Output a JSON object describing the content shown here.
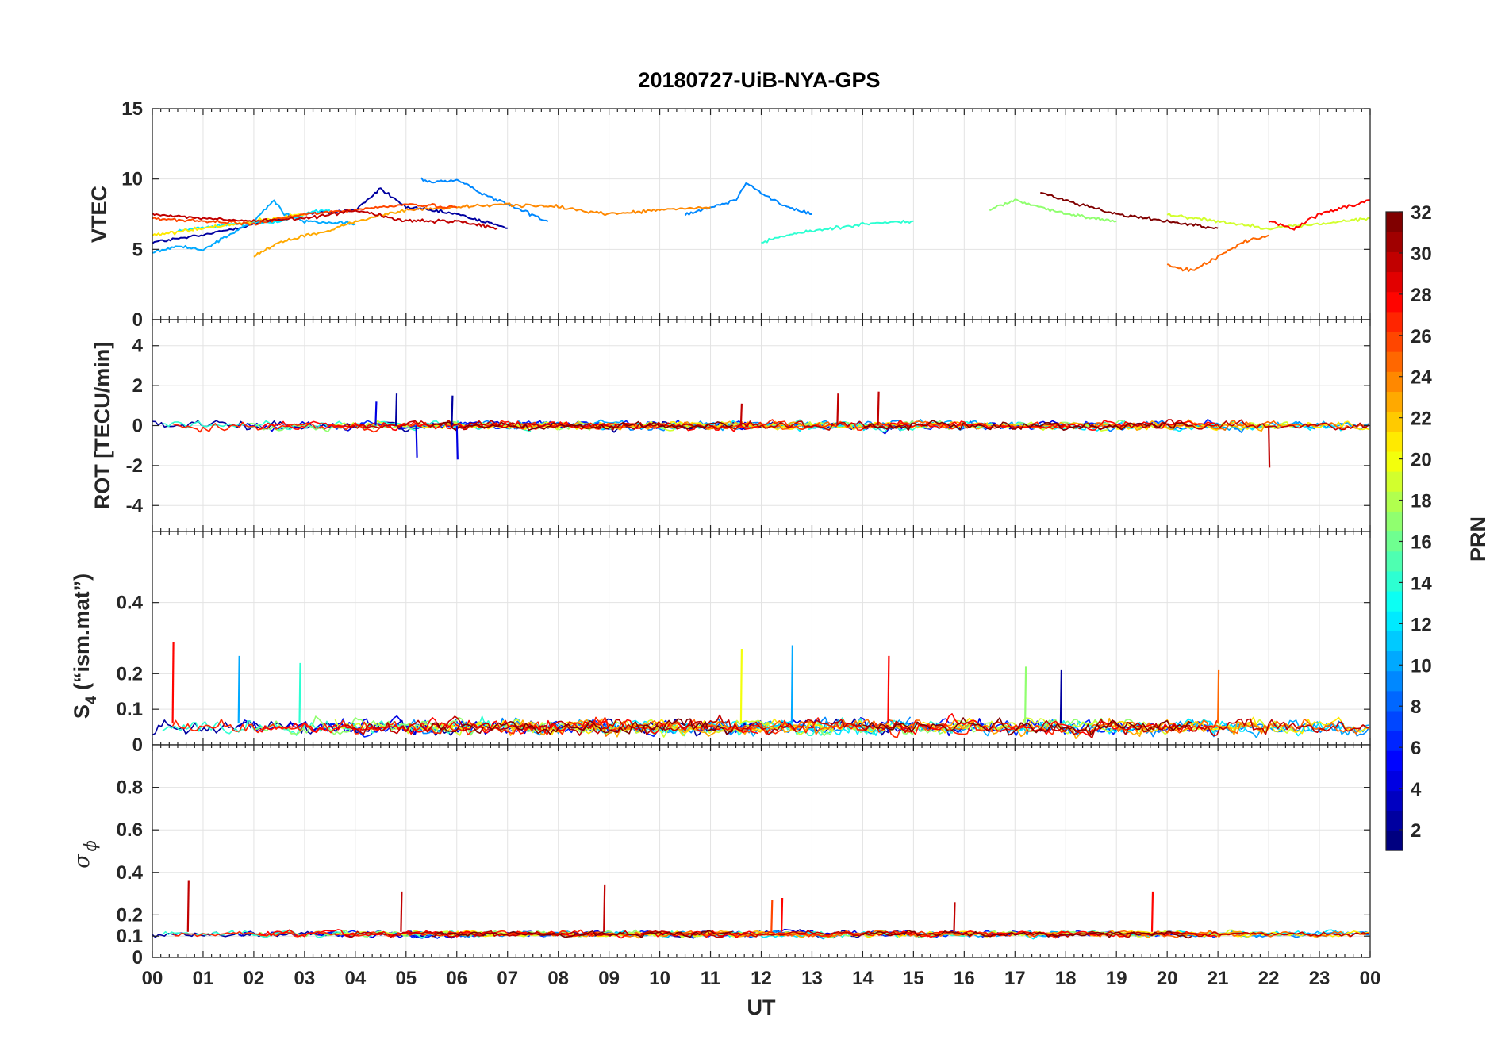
{
  "chart_data": {
    "title": "20180727-UiB-NYA-GPS",
    "colormap": "jet",
    "x": {
      "label": "UT",
      "range_hours": [
        0,
        24
      ],
      "tick_labels": [
        "00",
        "01",
        "02",
        "03",
        "04",
        "05",
        "06",
        "07",
        "08",
        "09",
        "10",
        "11",
        "12",
        "13",
        "14",
        "15",
        "16",
        "17",
        "18",
        "19",
        "20",
        "21",
        "22",
        "23",
        "00"
      ]
    },
    "colorbar": {
      "label": "PRN",
      "range": [
        1,
        32
      ],
      "tick_labels": [
        "2",
        "4",
        "6",
        "8",
        "10",
        "12",
        "14",
        "16",
        "18",
        "20",
        "22",
        "24",
        "26",
        "28",
        "30",
        "32"
      ]
    },
    "panels": [
      {
        "id": "vtec",
        "type": "line",
        "ylabel": "VTEC",
        "ylim": [
          0,
          15
        ],
        "ytick_labels": [
          "0",
          "5",
          "10",
          "15"
        ],
        "series": [
          {
            "prn": 2,
            "x": [
              0.0,
              1.0,
              2.0,
              3.0,
              4.0,
              4.5,
              5.0,
              6.0,
              7.0
            ],
            "y": [
              5.5,
              6.0,
              6.8,
              7.5,
              7.8,
              9.3,
              8.0,
              7.5,
              6.5
            ]
          },
          {
            "prn": 9,
            "x": [
              5.3,
              5.5,
              6.0,
              6.5,
              7.0,
              7.8
            ],
            "y": [
              10.0,
              9.8,
              9.9,
              9.0,
              8.2,
              7.0
            ]
          },
          {
            "prn": 9,
            "x": [
              10.5,
              11.0,
              11.5,
              11.7,
              12.0,
              12.5,
              13.0
            ],
            "y": [
              7.5,
              8.0,
              8.5,
              9.8,
              9.0,
              8.0,
              7.5
            ]
          },
          {
            "prn": 10,
            "x": [
              0.0,
              0.5,
              1.0,
              1.5,
              2.0,
              2.4,
              2.6,
              3.0,
              4.0
            ],
            "y": [
              4.8,
              5.2,
              5.0,
              6.0,
              7.0,
              8.5,
              7.5,
              7.0,
              6.8
            ]
          },
          {
            "prn": 12,
            "x": [
              0.5,
              1.5,
              2.5,
              3.0,
              3.5
            ],
            "y": [
              6.3,
              6.8,
              7.0,
              7.5,
              7.8
            ]
          },
          {
            "prn": 14,
            "x": [
              12.0,
              12.5,
              13.0,
              14.0,
              15.0
            ],
            "y": [
              5.5,
              6.0,
              6.3,
              6.8,
              7.0
            ]
          },
          {
            "prn": 17,
            "x": [
              16.5,
              17.0,
              17.5,
              18.0,
              19.0
            ],
            "y": [
              7.8,
              8.5,
              8.0,
              7.5,
              7.0
            ]
          },
          {
            "prn": 19,
            "x": [
              20.0,
              21.0,
              22.0,
              23.0,
              24.0
            ],
            "y": [
              7.5,
              7.0,
              6.5,
              6.8,
              7.2
            ]
          },
          {
            "prn": 21,
            "x": [
              0.0,
              1.0,
              2.0,
              3.0
            ],
            "y": [
              6.0,
              6.5,
              7.0,
              7.5
            ]
          },
          {
            "prn": 23,
            "x": [
              2.0,
              2.5,
              3.0,
              3.5,
              4.0,
              5.0
            ],
            "y": [
              4.5,
              5.5,
              6.0,
              6.3,
              7.0,
              7.8
            ]
          },
          {
            "prn": 24,
            "x": [
              5.0,
              6.0,
              7.0,
              8.0,
              9.0,
              10.0,
              11.0
            ],
            "y": [
              7.8,
              8.0,
              8.2,
              8.0,
              7.5,
              7.8,
              8.0
            ]
          },
          {
            "prn": 25,
            "x": [
              20.0,
              20.5,
              21.0,
              21.5,
              22.0
            ],
            "y": [
              3.8,
              3.5,
              4.5,
              5.5,
              6.0
            ]
          },
          {
            "prn": 26,
            "x": [
              0.0,
              1.0,
              2.0,
              3.0,
              4.0,
              5.0,
              6.0
            ],
            "y": [
              7.2,
              7.0,
              6.8,
              7.5,
              7.8,
              8.2,
              8.0
            ]
          },
          {
            "prn": 28,
            "x": [
              22.0,
              22.5,
              23.0,
              23.5,
              24.0
            ],
            "y": [
              7.0,
              6.5,
              7.5,
              8.0,
              8.5
            ]
          },
          {
            "prn": 30,
            "x": [
              0.0,
              1.0,
              2.0,
              3.0,
              4.0,
              5.0,
              6.0,
              6.8
            ],
            "y": [
              7.5,
              7.2,
              7.0,
              7.2,
              7.8,
              7.0,
              7.0,
              6.5
            ]
          },
          {
            "prn": 32,
            "x": [
              17.5,
              18.0,
              18.5,
              19.0,
              20.0,
              21.0
            ],
            "y": [
              9.0,
              8.5,
              8.0,
              7.5,
              7.0,
              6.5
            ]
          }
        ]
      },
      {
        "id": "rot",
        "type": "line",
        "ylabel": "ROT [TECU/min]",
        "ylim": [
          -5.3,
          5.3
        ],
        "ytick_labels": [
          "-4",
          "-2",
          "0",
          "2",
          "4"
        ],
        "spikes": [
          {
            "t": 4.4,
            "v": 1.2,
            "prn": 4
          },
          {
            "t": 4.8,
            "v": 1.6,
            "prn": 2
          },
          {
            "t": 5.2,
            "v": -1.6,
            "prn": 4
          },
          {
            "t": 5.9,
            "v": 1.5,
            "prn": 2
          },
          {
            "t": 6.0,
            "v": -1.7,
            "prn": 4
          },
          {
            "t": 11.6,
            "v": 1.1,
            "prn": 30
          },
          {
            "t": 13.5,
            "v": 1.6,
            "prn": 30
          },
          {
            "t": 14.3,
            "v": 1.7,
            "prn": 30
          },
          {
            "t": 22.0,
            "v": -2.1,
            "prn": 30
          }
        ]
      },
      {
        "id": "s4",
        "type": "line",
        "ylabel": "S4 (\"ism.mat\")",
        "ylim": [
          0,
          0.6
        ],
        "ytick_labels": [
          "0",
          "0.1",
          "0.2",
          "0.4"
        ],
        "spikes": [
          {
            "t": 0.4,
            "v": 0.29,
            "prn": 28
          },
          {
            "t": 1.7,
            "v": 0.25,
            "prn": 10
          },
          {
            "t": 2.9,
            "v": 0.23,
            "prn": 14
          },
          {
            "t": 11.6,
            "v": 0.27,
            "prn": 20
          },
          {
            "t": 12.6,
            "v": 0.28,
            "prn": 10
          },
          {
            "t": 14.5,
            "v": 0.25,
            "prn": 28
          },
          {
            "t": 17.2,
            "v": 0.22,
            "prn": 17
          },
          {
            "t": 17.9,
            "v": 0.21,
            "prn": 2
          },
          {
            "t": 21.0,
            "v": 0.21,
            "prn": 25
          }
        ]
      },
      {
        "id": "sigma_phi",
        "type": "line",
        "ylabel": "σ ϕ",
        "ylim": [
          0,
          1
        ],
        "ytick_labels": [
          "0",
          "0.1",
          "0.2",
          "0.4",
          "0.6",
          "0.8"
        ],
        "spikes": [
          {
            "t": 0.7,
            "v": 0.36,
            "prn": 30
          },
          {
            "t": 4.9,
            "v": 0.31,
            "prn": 30
          },
          {
            "t": 8.9,
            "v": 0.34,
            "prn": 30
          },
          {
            "t": 12.2,
            "v": 0.27,
            "prn": 26
          },
          {
            "t": 12.4,
            "v": 0.28,
            "prn": 28
          },
          {
            "t": 15.8,
            "v": 0.26,
            "prn": 30
          },
          {
            "t": 19.7,
            "v": 0.31,
            "prn": 28
          }
        ]
      }
    ]
  }
}
